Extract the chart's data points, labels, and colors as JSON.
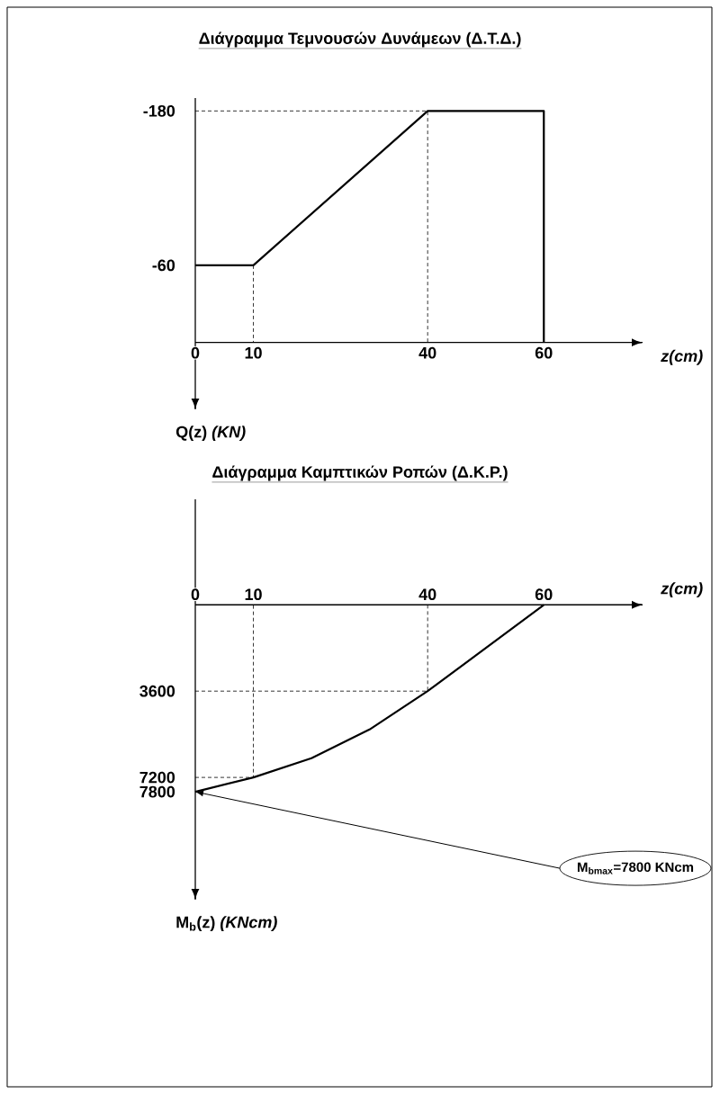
{
  "chart_data": [
    {
      "type": "line",
      "title": "Διάγραμμα Τεμνουσών Δυνάμεων (Δ.Τ.Δ.)",
      "xlabel": "*z(cm)*",
      "ylabel": "Q(z) *(KN)*",
      "xlim": [
        0,
        77
      ],
      "ylim": [
        52,
        -190
      ],
      "xticks": [
        0,
        10,
        40,
        60
      ],
      "yticks": [
        -180,
        -60
      ],
      "series": [
        {
          "x": [
            0,
            10,
            40,
            60,
            60
          ],
          "values": [
            -60,
            -60,
            -180,
            -180,
            0
          ],
          "color": "#000000"
        },
        {
          "x": [
            0,
            40,
            40
          ],
          "values": [
            -180,
            -180,
            0
          ],
          "color": "#000000",
          "line_style": "dashed"
        },
        {
          "x": [
            10,
            10
          ],
          "values": [
            -60,
            0
          ],
          "color": "#000000",
          "line_style": "dashed"
        }
      ]
    },
    {
      "type": "line",
      "title": "Διάγραμμα Καμπτικών Ροπών (Δ.Κ.Ρ.)",
      "xlabel": "*z(cm)*",
      "ylabel": "M$_{b}$(z) *(KNcm)*",
      "xlim": [
        0,
        77
      ],
      "ylim": [
        12300,
        -4400
      ],
      "xticks": [
        0,
        10,
        40,
        60
      ],
      "yticks": [
        3600,
        7200,
        7800
      ],
      "annotations": [
        "M$_{bmax}$=7800 KNcm"
      ],
      "series": [
        {
          "x": [
            0,
            10,
            20,
            30,
            40,
            60
          ],
          "values": [
            7800,
            7200,
            6400,
            5200,
            3600,
            0
          ],
          "color": "#000000"
        },
        {
          "x": [
            0,
            10,
            10
          ],
          "values": [
            7200,
            7200,
            0
          ],
          "color": "#000000",
          "line_style": "dashed"
        },
        {
          "x": [
            0,
            40,
            40
          ],
          "values": [
            3600,
            3600,
            0
          ],
          "color": "#000000",
          "line_style": "dashed"
        }
      ]
    }
  ]
}
